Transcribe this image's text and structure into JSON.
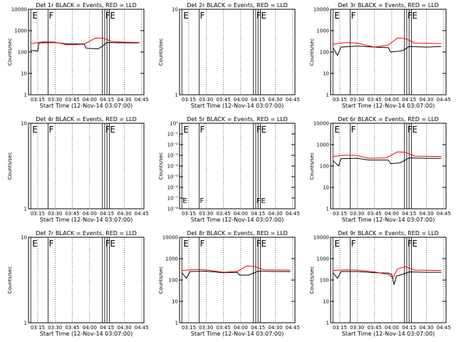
{
  "figure": {
    "xlabel": "Start Time (12-Nov-14 03:07:00)",
    "ylabel_long": "Counts/sec",
    "ylabel_short": "Counts/sec",
    "event_colors": {
      "events": "#000000",
      "lld": "#ff0000"
    }
  },
  "chart_data": [
    {
      "type": "line",
      "title": "Det 1r BLACK = Events, RED = LLD",
      "xlabel": "Start Time (12-Nov-14 03:07:00)",
      "ylabel": "Counts/sec",
      "xticks": [
        "03:15",
        "03:30",
        "03:45",
        "04:00",
        "04:15",
        "04:30",
        "04:45"
      ],
      "yticks": [
        "1",
        "10",
        "100",
        "1000",
        "10000"
      ],
      "ylim": [
        1,
        10000
      ],
      "yscale": "log",
      "markers": [
        {
          "label": "E",
          "t": "03:09"
        },
        {
          "label": "F",
          "t": "03:24"
        },
        {
          "label": "F",
          "t": "04:13"
        },
        {
          "label": "E",
          "t": "04:17"
        }
      ],
      "series": [
        {
          "color": "#000000",
          "points": [
            [
              "03:09",
              120
            ],
            [
              "03:15",
              110
            ],
            [
              "03:16",
              270
            ],
            [
              "03:30",
              280
            ],
            [
              "03:40",
              240
            ],
            [
              "03:55",
              240
            ],
            [
              "03:57",
              150
            ],
            [
              "04:07",
              140
            ],
            [
              "04:10",
              170
            ],
            [
              "04:15",
              280
            ],
            [
              "04:30",
              270
            ],
            [
              "04:43",
              270
            ]
          ]
        },
        {
          "color": "#ff0000",
          "points": [
            [
              "03:09",
              250
            ],
            [
              "03:20",
              300
            ],
            [
              "03:30",
              290
            ],
            [
              "03:40",
              220
            ],
            [
              "03:55",
              230
            ],
            [
              "04:05",
              450
            ],
            [
              "04:12",
              440
            ],
            [
              "04:20",
              300
            ],
            [
              "04:43",
              280
            ]
          ]
        }
      ]
    },
    {
      "type": "line",
      "title": "Det 2r BLACK = Events, RED = LLD",
      "xlabel": "Start Time (12-Nov-14 03:07:00)",
      "ylabel": "Counts/sec",
      "xticks": [
        "03:15",
        "03:30",
        "03:45",
        "04:00",
        "04:15",
        "04:30",
        "04:45"
      ],
      "yticks": [
        "1",
        "10"
      ],
      "ylim": [
        1,
        10
      ],
      "yscale": "log",
      "markers": [
        {
          "label": "E",
          "t": "03:09"
        },
        {
          "label": "F",
          "t": "03:24"
        },
        {
          "label": "F",
          "t": "04:13"
        },
        {
          "label": "E",
          "t": "04:17"
        }
      ],
      "series": []
    },
    {
      "type": "line",
      "title": "Det 3r BLACK = Events, RED = LLD",
      "xlabel": "Start Time (12-Nov-14 03:07:00)",
      "ylabel": "Counts/sec",
      "xticks": [
        "03:15",
        "03:30",
        "03:45",
        "04:00",
        "04:15",
        "04:30",
        "04:45"
      ],
      "yticks": [
        "1",
        "10",
        "100",
        "1000",
        "10000"
      ],
      "ylim": [
        1,
        10000
      ],
      "yscale": "log",
      "markers": [
        {
          "label": "E",
          "t": "03:09"
        },
        {
          "label": "F",
          "t": "03:24"
        },
        {
          "label": "F",
          "t": "04:13"
        },
        {
          "label": "E",
          "t": "04:17"
        }
      ],
      "series": [
        {
          "color": "#000000",
          "points": [
            [
              "03:09",
              160
            ],
            [
              "03:13",
              70
            ],
            [
              "03:16",
              170
            ],
            [
              "03:30",
              190
            ],
            [
              "03:45",
              170
            ],
            [
              "03:57",
              160
            ],
            [
              "03:59",
              100
            ],
            [
              "04:07",
              110
            ],
            [
              "04:10",
              120
            ],
            [
              "04:15",
              180
            ],
            [
              "04:30",
              170
            ],
            [
              "04:43",
              180
            ]
          ]
        },
        {
          "color": "#ff0000",
          "points": [
            [
              "03:09",
              230
            ],
            [
              "03:20",
              280
            ],
            [
              "03:30",
              260
            ],
            [
              "03:45",
              170
            ],
            [
              "03:57",
              210
            ],
            [
              "04:05",
              450
            ],
            [
              "04:12",
              420
            ],
            [
              "04:20",
              260
            ],
            [
              "04:43",
              250
            ]
          ]
        }
      ]
    },
    {
      "type": "line",
      "title": "Det 4r BLACK = Events, RED = LLD",
      "xlabel": "Start Time (12-Nov-14 03:07:00)",
      "ylabel": "Counts/sec",
      "xticks": [
        "03:15",
        "03:30",
        "03:45",
        "04:00",
        "04:15",
        "04:30",
        "04:45"
      ],
      "yticks": [
        "1",
        "10"
      ],
      "ylim": [
        1,
        10
      ],
      "yscale": "log",
      "markers": [
        {
          "label": "E",
          "t": "03:09"
        },
        {
          "label": "F",
          "t": "03:24"
        },
        {
          "label": "F",
          "t": "04:13"
        },
        {
          "label": "E",
          "t": "04:17"
        }
      ],
      "series": []
    },
    {
      "type": "line",
      "title": "Det 5r BLACK = Events, RED = LLD",
      "xlabel": "Start Time (12-Nov-14 03:07:00)",
      "ylabel": "Counts/sec",
      "xticks": [
        "03:15",
        "03:30",
        "03:45",
        "04:00",
        "04:15",
        "04:30",
        "04:45"
      ],
      "yticks": [
        "10⁻⁸",
        "10⁻⁷",
        "10⁻⁶",
        "10⁻⁵",
        "10⁻⁴",
        "10⁻³",
        "10⁻²",
        "10⁻¹",
        "10⁰"
      ],
      "ylim": [
        1e-08,
        1
      ],
      "yscale": "log",
      "markers": [
        {
          "label": "E",
          "t": "03:09"
        },
        {
          "label": "F",
          "t": "03:24"
        },
        {
          "label": "F",
          "t": "04:13"
        },
        {
          "label": "E",
          "t": "04:17"
        }
      ],
      "series": []
    },
    {
      "type": "line",
      "title": "Det 6r BLACK = Events, RED = LLD",
      "xlabel": "Start Time (12-Nov-14 03:07:00)",
      "ylabel": "Counts/sec",
      "xticks": [
        "03:15",
        "03:30",
        "03:45",
        "04:00",
        "04:15",
        "04:30",
        "04:45"
      ],
      "yticks": [
        "1",
        "10",
        "100",
        "1000",
        "10000"
      ],
      "ylim": [
        1,
        10000
      ],
      "yscale": "log",
      "markers": [
        {
          "label": "E",
          "t": "03:09"
        },
        {
          "label": "F",
          "t": "03:24"
        },
        {
          "label": "F",
          "t": "04:13"
        },
        {
          "label": "E",
          "t": "04:17"
        }
      ],
      "series": [
        {
          "color": "#000000",
          "points": [
            [
              "03:09",
              180
            ],
            [
              "03:14",
              100
            ],
            [
              "03:16",
              220
            ],
            [
              "03:30",
              230
            ],
            [
              "03:40",
              190
            ],
            [
              "03:57",
              190
            ],
            [
              "03:59",
              130
            ],
            [
              "04:07",
              140
            ],
            [
              "04:10",
              170
            ],
            [
              "04:15",
              240
            ],
            [
              "04:30",
              230
            ],
            [
              "04:43",
              230
            ]
          ]
        },
        {
          "color": "#ff0000",
          "points": [
            [
              "03:09",
              280
            ],
            [
              "03:20",
              320
            ],
            [
              "03:30",
              310
            ],
            [
              "03:40",
              230
            ],
            [
              "03:55",
              240
            ],
            [
              "04:05",
              460
            ],
            [
              "04:12",
              440
            ],
            [
              "04:20",
              290
            ],
            [
              "04:43",
              280
            ]
          ]
        }
      ]
    },
    {
      "type": "line",
      "title": "Det 7r BLACK = Events, RED = LLD",
      "xlabel": "Start Time (12-Nov-14 03:07:00)",
      "ylabel": "Counts/sec",
      "xticks": [
        "03:15",
        "03:30",
        "03:45",
        "04:00",
        "04:15",
        "04:30",
        "04:45"
      ],
      "yticks": [
        "1",
        "10"
      ],
      "ylim": [
        1,
        10
      ],
      "yscale": "log",
      "markers": [
        {
          "label": "E",
          "t": "03:09"
        },
        {
          "label": "F",
          "t": "03:24"
        },
        {
          "label": "F",
          "t": "04:13"
        },
        {
          "label": "E",
          "t": "04:17"
        }
      ],
      "series": []
    },
    {
      "type": "line",
      "title": "Det 8r BLACK = Events, RED = LLD",
      "xlabel": "Start Time (12-Nov-14 03:07:00)",
      "ylabel": "Counts/sec",
      "xticks": [
        "03:15",
        "03:30",
        "03:45",
        "04:00",
        "04:15",
        "04:30",
        "04:45"
      ],
      "yticks": [
        "1",
        "10",
        "100",
        "1000",
        "10000"
      ],
      "ylim": [
        1,
        10000
      ],
      "yscale": "log",
      "markers": [
        {
          "label": "E",
          "t": "03:09"
        },
        {
          "label": "F",
          "t": "03:24"
        },
        {
          "label": "F",
          "t": "04:13"
        },
        {
          "label": "E",
          "t": "04:17"
        }
      ],
      "series": [
        {
          "color": "#000000",
          "points": [
            [
              "03:09",
              220
            ],
            [
              "03:13",
              120
            ],
            [
              "03:16",
              250
            ],
            [
              "03:30",
              260
            ],
            [
              "03:45",
              220
            ],
            [
              "03:57",
              230
            ],
            [
              "03:59",
              170
            ],
            [
              "04:07",
              170
            ],
            [
              "04:10",
              200
            ],
            [
              "04:15",
              260
            ],
            [
              "04:30",
              250
            ],
            [
              "04:43",
              250
            ]
          ]
        },
        {
          "color": "#ff0000",
          "points": [
            [
              "03:09",
              280
            ],
            [
              "03:20",
              310
            ],
            [
              "03:30",
              300
            ],
            [
              "03:45",
              230
            ],
            [
              "03:57",
              250
            ],
            [
              "04:05",
              450
            ],
            [
              "04:12",
              430
            ],
            [
              "04:20",
              300
            ],
            [
              "04:43",
              290
            ]
          ]
        }
      ]
    },
    {
      "type": "line",
      "title": "Det 9r BLACK = Events, RED = LLD",
      "xlabel": "Start Time (12-Nov-14 03:07:00)",
      "ylabel": "Counts/sec",
      "xticks": [
        "03:15",
        "03:30",
        "03:45",
        "04:00",
        "04:15",
        "04:30",
        "04:45"
      ],
      "yticks": [
        "1",
        "10",
        "100",
        "1000",
        "10000"
      ],
      "ylim": [
        1,
        10000
      ],
      "yscale": "log",
      "markers": [
        {
          "label": "E",
          "t": "03:09"
        },
        {
          "label": "F",
          "t": "03:24"
        },
        {
          "label": "F",
          "t": "04:13"
        },
        {
          "label": "E",
          "t": "04:17"
        }
      ],
      "series": [
        {
          "color": "#000000",
          "points": [
            [
              "03:09",
              220
            ],
            [
              "03:13",
              120
            ],
            [
              "03:16",
              250
            ],
            [
              "03:30",
              250
            ],
            [
              "03:45",
              220
            ],
            [
              "03:57",
              210
            ],
            [
              "04:00",
              180
            ],
            [
              "04:02",
              60
            ],
            [
              "04:04",
              150
            ],
            [
              "04:10",
              190
            ],
            [
              "04:15",
              240
            ],
            [
              "04:30",
              230
            ],
            [
              "04:43",
              230
            ]
          ]
        },
        {
          "color": "#ff0000",
          "points": [
            [
              "03:09",
              280
            ],
            [
              "03:20",
              300
            ],
            [
              "03:30",
              290
            ],
            [
              "03:45",
              240
            ],
            [
              "03:57",
              180
            ],
            [
              "04:01",
              130
            ],
            [
              "04:05",
              330
            ],
            [
              "04:12",
              420
            ],
            [
              "04:20",
              290
            ],
            [
              "04:43",
              280
            ]
          ]
        }
      ]
    }
  ]
}
